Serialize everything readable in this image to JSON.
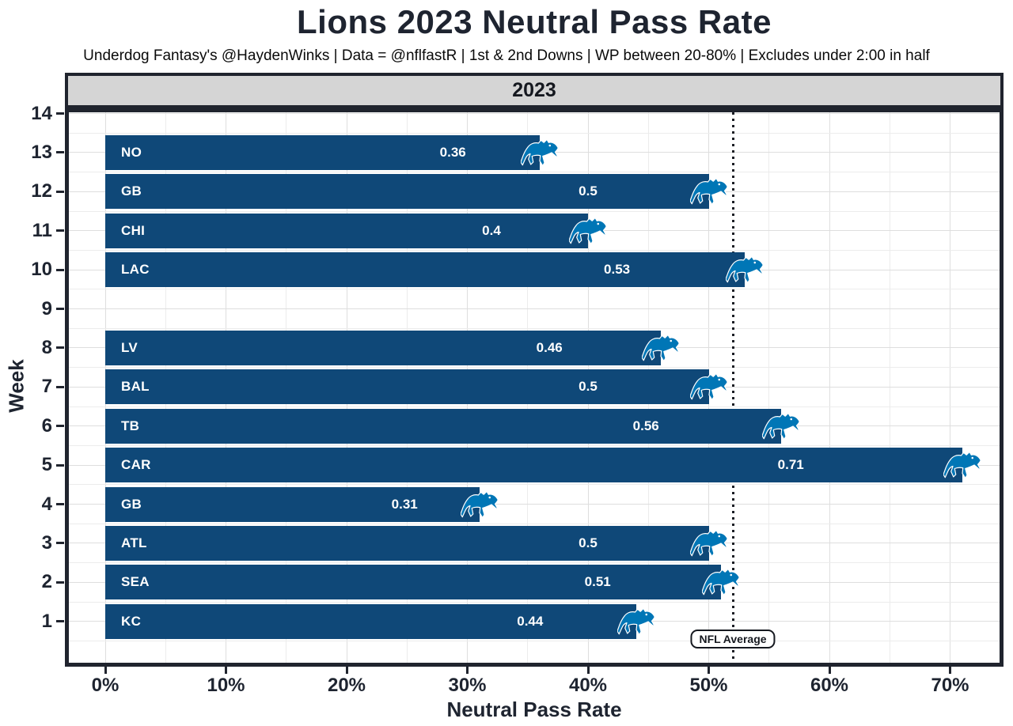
{
  "header": {
    "title": "Lions 2023 Neutral Pass Rate",
    "subtitle": "Underdog Fantasy's @HaydenWinks | Data = @nflfastR | 1st & 2nd Downs | WP between 20-80% | Excludes under 2:00 in half"
  },
  "facet": {
    "label": "2023"
  },
  "chart_data": {
    "type": "bar",
    "orientation": "horizontal",
    "title": "Lions 2023 Neutral Pass Rate",
    "xlabel": "Neutral Pass Rate",
    "ylabel": "Week",
    "xlim": [
      -0.028,
      0.74
    ],
    "x_ticks": [
      {
        "value": 0.0,
        "label": "0%"
      },
      {
        "value": 0.1,
        "label": "10%"
      },
      {
        "value": 0.2,
        "label": "20%"
      },
      {
        "value": 0.3,
        "label": "30%"
      },
      {
        "value": 0.4,
        "label": "40%"
      },
      {
        "value": 0.5,
        "label": "50%"
      },
      {
        "value": 0.6,
        "label": "60%"
      },
      {
        "value": 0.7,
        "label": "70%"
      }
    ],
    "x_minor_step": 0.05,
    "y_ticks": [
      1,
      2,
      3,
      4,
      5,
      6,
      7,
      8,
      9,
      10,
      11,
      12,
      13,
      14
    ],
    "grid": true,
    "legend": "none",
    "bar_end_icon": "detroit-lions-logo",
    "bars": [
      {
        "week": 13,
        "opponent": "NO",
        "value": 0.36,
        "value_label": "0.36"
      },
      {
        "week": 12,
        "opponent": "GB",
        "value": 0.5,
        "value_label": "0.5"
      },
      {
        "week": 11,
        "opponent": "CHI",
        "value": 0.4,
        "value_label": "0.4"
      },
      {
        "week": 10,
        "opponent": "LAC",
        "value": 0.53,
        "value_label": "0.53"
      },
      {
        "week": 8,
        "opponent": "LV",
        "value": 0.46,
        "value_label": "0.46"
      },
      {
        "week": 7,
        "opponent": "BAL",
        "value": 0.5,
        "value_label": "0.5"
      },
      {
        "week": 6,
        "opponent": "TB",
        "value": 0.56,
        "value_label": "0.56"
      },
      {
        "week": 5,
        "opponent": "CAR",
        "value": 0.71,
        "value_label": "0.71"
      },
      {
        "week": 4,
        "opponent": "GB",
        "value": 0.31,
        "value_label": "0.31"
      },
      {
        "week": 3,
        "opponent": "ATL",
        "value": 0.5,
        "value_label": "0.5"
      },
      {
        "week": 2,
        "opponent": "SEA",
        "value": 0.51,
        "value_label": "0.51"
      },
      {
        "week": 1,
        "opponent": "KC",
        "value": 0.44,
        "value_label": "0.44"
      }
    ],
    "reference_line": {
      "value": 0.52,
      "label": "NFL Average",
      "style": "dotted"
    }
  },
  "colors": {
    "bar_fill": "#0f4878",
    "logo_blue": "#0076b6",
    "text_dark": "#1e2430",
    "subtitle_text": "#0a0a0a",
    "grid_major": "#dedede",
    "grid_minor": "#ececec",
    "strip_fill": "#d5d5d5",
    "panel_border": "#20242e",
    "reference_line": "#1a1d24",
    "bar_label_text": "#ffffff",
    "ref_label_bg": "#ffffff"
  }
}
